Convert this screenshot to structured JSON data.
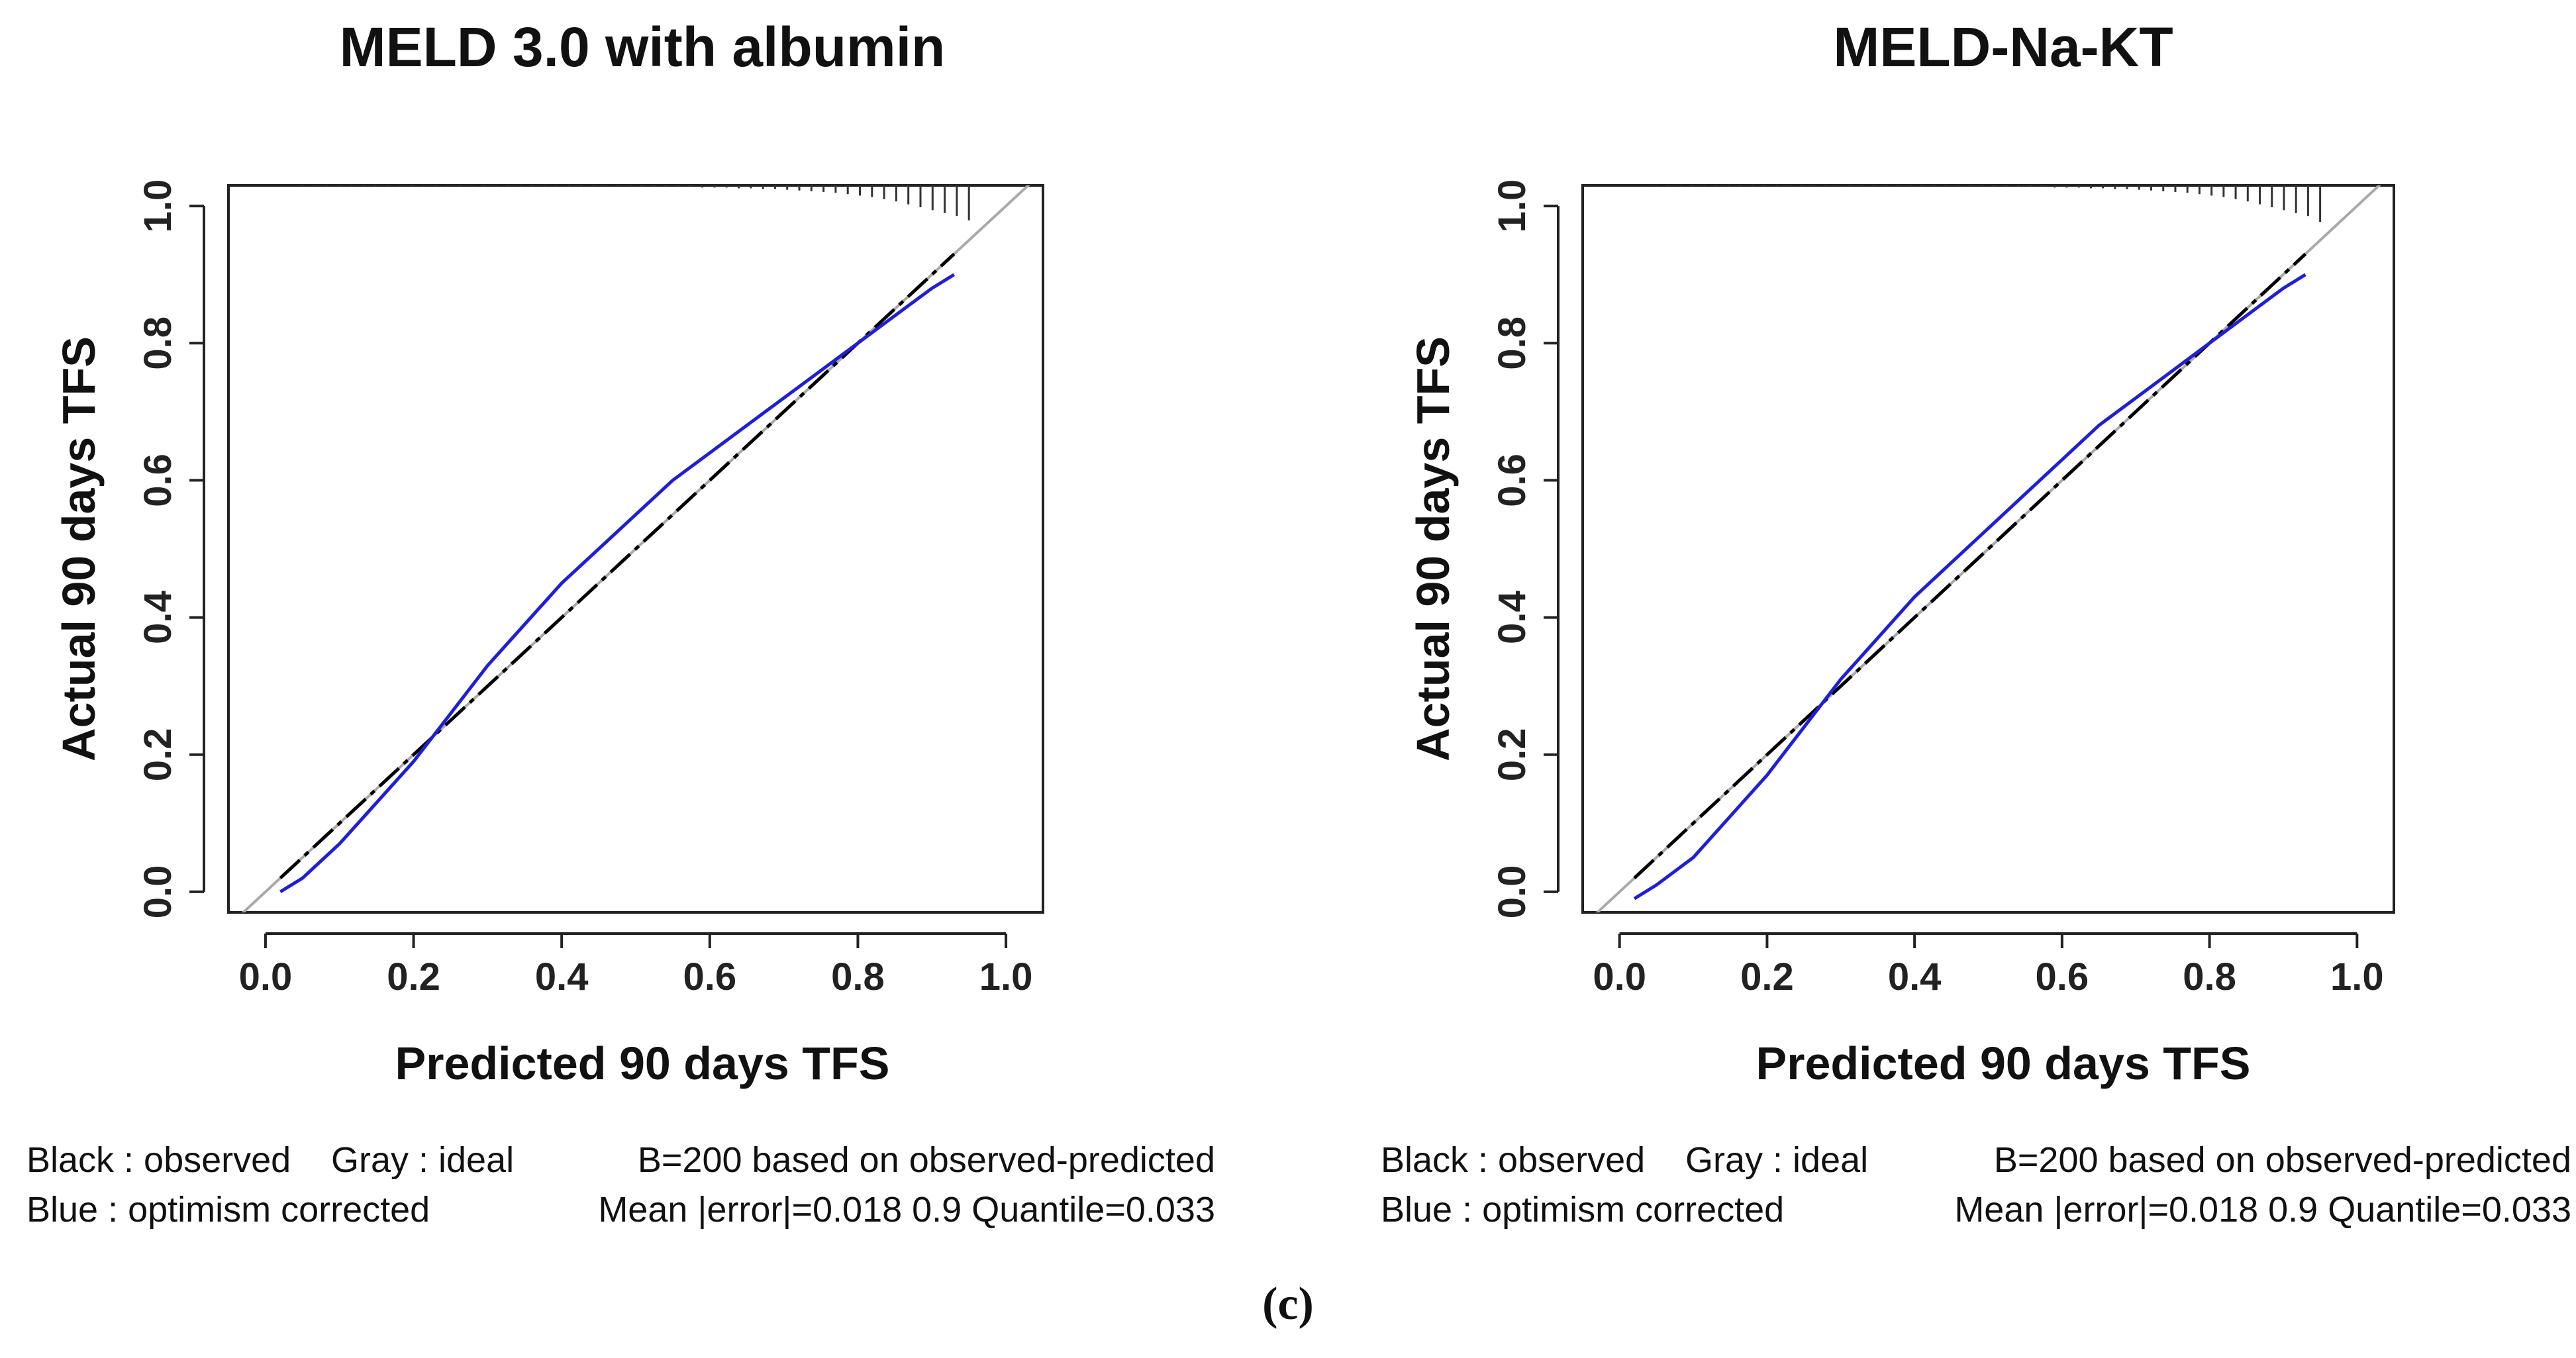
{
  "caption": "(c)",
  "chart_data": [
    {
      "type": "line",
      "title": "MELD 3.0 with albumin",
      "xlabel": "Predicted 90 days TFS",
      "ylabel": "Actual 90 days TFS",
      "xlim": [
        -0.05,
        1.05
      ],
      "ylim": [
        -0.03,
        1.03
      ],
      "xticks": [
        "0.0",
        "0.2",
        "0.4",
        "0.6",
        "0.8",
        "1.0"
      ],
      "yticks": [
        "0.0",
        "0.2",
        "0.4",
        "0.6",
        "0.8",
        "1.0"
      ],
      "series": [
        {
          "name": "ideal",
          "color": "#a9a9a9",
          "style": "solid",
          "x": [
            -0.05,
            1.05
          ],
          "y": [
            -0.05,
            1.05
          ]
        },
        {
          "name": "observed",
          "color": "#000000",
          "style": "dashed",
          "x": [
            0.02,
            0.1,
            0.2,
            0.3,
            0.4,
            0.5,
            0.6,
            0.7,
            0.8,
            0.9,
            0.93
          ],
          "y": [
            0.02,
            0.1,
            0.2,
            0.3,
            0.4,
            0.5,
            0.6,
            0.7,
            0.8,
            0.9,
            0.93
          ]
        },
        {
          "name": "optimism corrected",
          "color": "#1f1fd8",
          "style": "solid",
          "x": [
            0.02,
            0.05,
            0.1,
            0.15,
            0.2,
            0.25,
            0.3,
            0.35,
            0.4,
            0.45,
            0.5,
            0.55,
            0.6,
            0.65,
            0.7,
            0.75,
            0.8,
            0.85,
            0.9,
            0.93
          ],
          "y": [
            0.0,
            0.02,
            0.07,
            0.13,
            0.19,
            0.26,
            0.33,
            0.39,
            0.45,
            0.5,
            0.55,
            0.6,
            0.64,
            0.68,
            0.72,
            0.76,
            0.8,
            0.84,
            0.88,
            0.9
          ]
        }
      ],
      "rug_density": [
        1,
        1,
        1,
        1,
        1,
        1,
        1,
        1,
        1,
        1,
        1,
        1,
        1,
        1,
        1,
        1,
        1,
        1,
        1,
        1,
        1,
        1,
        1,
        1,
        1,
        1,
        1,
        1,
        2,
        2,
        2,
        2,
        2,
        3,
        3,
        3,
        4,
        4,
        5,
        5,
        6,
        7,
        8,
        9,
        10,
        12,
        14,
        16,
        19,
        22,
        26,
        30,
        34,
        38,
        42,
        48
      ],
      "rug_x": [
        0.05,
        0.95
      ],
      "legend": [
        "Black : observed",
        "Gray : ideal",
        "Blue : optimism corrected"
      ],
      "stats": [
        "B=200 based on observed-predicted",
        "Mean |error|=0.018  0.9 Quantile=0.033"
      ]
    },
    {
      "type": "line",
      "title": "MELD-Na-KT",
      "xlabel": "Predicted 90 days TFS",
      "ylabel": "Actual 90 days TFS",
      "xlim": [
        -0.05,
        1.05
      ],
      "ylim": [
        -0.03,
        1.03
      ],
      "xticks": [
        "0.0",
        "0.2",
        "0.4",
        "0.6",
        "0.8",
        "1.0"
      ],
      "yticks": [
        "0.0",
        "0.2",
        "0.4",
        "0.6",
        "0.8",
        "1.0"
      ],
      "series": [
        {
          "name": "ideal",
          "color": "#a9a9a9",
          "style": "solid",
          "x": [
            -0.05,
            1.05
          ],
          "y": [
            -0.05,
            1.05
          ]
        },
        {
          "name": "observed",
          "color": "#000000",
          "style": "dashed",
          "x": [
            0.02,
            0.1,
            0.2,
            0.3,
            0.4,
            0.5,
            0.6,
            0.7,
            0.8,
            0.9,
            0.93
          ],
          "y": [
            0.02,
            0.1,
            0.2,
            0.3,
            0.4,
            0.5,
            0.6,
            0.7,
            0.8,
            0.9,
            0.93
          ]
        },
        {
          "name": "optimism corrected",
          "color": "#1f1fd8",
          "style": "solid",
          "x": [
            0.02,
            0.05,
            0.1,
            0.15,
            0.2,
            0.25,
            0.3,
            0.35,
            0.4,
            0.45,
            0.5,
            0.55,
            0.6,
            0.65,
            0.7,
            0.75,
            0.8,
            0.85,
            0.9,
            0.93
          ],
          "y": [
            -0.01,
            0.01,
            0.05,
            0.11,
            0.17,
            0.24,
            0.31,
            0.37,
            0.43,
            0.48,
            0.53,
            0.58,
            0.63,
            0.68,
            0.72,
            0.76,
            0.8,
            0.84,
            0.88,
            0.9
          ]
        }
      ],
      "rug_density": [
        1,
        1,
        1,
        1,
        1,
        1,
        1,
        1,
        1,
        1,
        1,
        1,
        1,
        1,
        1,
        1,
        1,
        1,
        1,
        1,
        1,
        1,
        1,
        1,
        1,
        1,
        1,
        1,
        2,
        2,
        2,
        2,
        2,
        3,
        3,
        3,
        4,
        4,
        5,
        5,
        6,
        7,
        8,
        9,
        10,
        12,
        14,
        16,
        19,
        22,
        26,
        30,
        34,
        38,
        42,
        50
      ],
      "rug_x": [
        0.05,
        0.95
      ],
      "legend": [
        "Black : observed",
        "Gray : ideal",
        "Blue : optimism corrected"
      ],
      "stats": [
        "B=200 based on observed-predicted",
        "Mean |error|=0.018  0.9 Quantile=0.033"
      ]
    }
  ]
}
